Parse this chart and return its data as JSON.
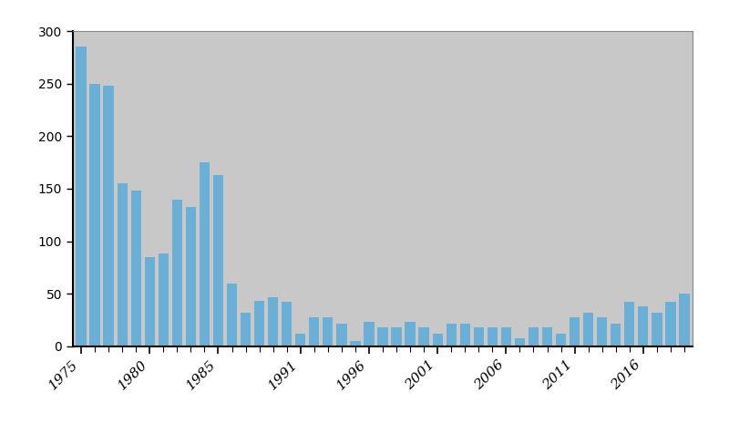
{
  "years": [
    1975,
    1976,
    1977,
    1978,
    1979,
    1980,
    1981,
    1982,
    1983,
    1984,
    1985,
    1986,
    1987,
    1988,
    1989,
    1990,
    1991,
    1992,
    1993,
    1994,
    1995,
    1996,
    1997,
    1998,
    1999,
    2000,
    2001,
    2002,
    2003,
    2004,
    2005,
    2006,
    2007,
    2008,
    2009,
    2010,
    2011,
    2012,
    2013,
    2014,
    2015,
    2016,
    2017,
    2018,
    2019
  ],
  "values": [
    285,
    250,
    248,
    155,
    148,
    85,
    88,
    140,
    133,
    175,
    163,
    60,
    32,
    43,
    47,
    42,
    12,
    28,
    28,
    22,
    5,
    23,
    18,
    18,
    23,
    18,
    12,
    22,
    22,
    18,
    18,
    18,
    8,
    18,
    18,
    12,
    28,
    32,
    28,
    22,
    42,
    38,
    32,
    42,
    50
  ],
  "bar_color": "#6baed6",
  "background_color": "#c8c8c8",
  "outer_background": "#ffffff",
  "ylim": [
    0,
    300
  ],
  "yticks": [
    0,
    50,
    100,
    150,
    200,
    250,
    300
  ],
  "xtick_labels": [
    "1975",
    "1980",
    "1985",
    "1991",
    "1996",
    "2001",
    "2006",
    "2011",
    "2016"
  ],
  "xtick_positions": [
    1975,
    1980,
    1985,
    1991,
    1996,
    2001,
    2006,
    2011,
    2016
  ],
  "figsize": [
    8.0,
    4.87
  ],
  "dpi": 100
}
